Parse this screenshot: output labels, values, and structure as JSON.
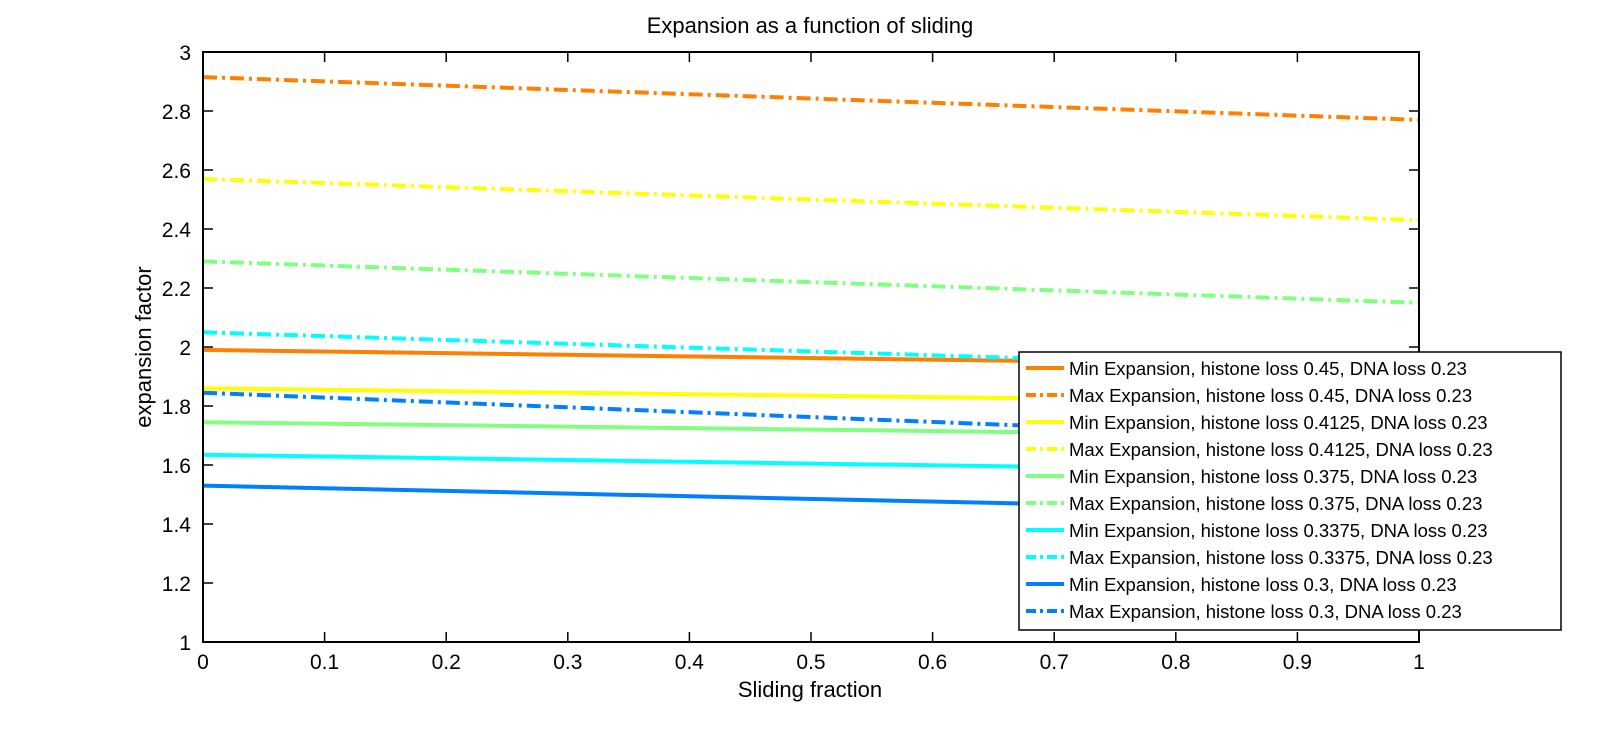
{
  "chart_data": {
    "type": "line",
    "title": "Expansion as a function of sliding",
    "xlabel": "Sliding fraction",
    "ylabel": "expansion factor",
    "xlim": [
      0,
      1
    ],
    "ylim": [
      1,
      3
    ],
    "x_ticks": [
      0,
      0.1,
      0.2,
      0.3,
      0.4,
      0.5,
      0.6,
      0.7,
      0.8,
      0.9,
      1
    ],
    "y_ticks": [
      1,
      1.2,
      1.4,
      1.6,
      1.8,
      2,
      2.2,
      2.4,
      2.6,
      2.8,
      3
    ],
    "grid": false,
    "legend_position": "bottom-right",
    "series": [
      {
        "name": "Min Expansion, histone loss 0.45, DNA loss 0.23",
        "x": [
          0,
          1
        ],
        "y": [
          1.99,
          1.935
        ],
        "color": "#ff8000",
        "style": "solid"
      },
      {
        "name": "Max Expansion, histone loss 0.45, DNA loss 0.23",
        "x": [
          0,
          1
        ],
        "y": [
          2.915,
          2.77
        ],
        "color": "#ff8000",
        "style": "dashdot"
      },
      {
        "name": "Min Expansion, histone loss 0.4125, DNA loss 0.23",
        "x": [
          0,
          1
        ],
        "y": [
          1.86,
          1.81
        ],
        "color": "#ffff00",
        "style": "solid"
      },
      {
        "name": "Max Expansion, histone loss 0.4125, DNA loss 0.23",
        "x": [
          0,
          1
        ],
        "y": [
          2.57,
          2.43
        ],
        "color": "#ffff00",
        "style": "dashdot"
      },
      {
        "name": "Min Expansion, histone loss 0.375, DNA loss 0.23",
        "x": [
          0,
          1
        ],
        "y": [
          1.745,
          1.695
        ],
        "color": "#80ff80",
        "style": "solid"
      },
      {
        "name": "Max Expansion, histone loss 0.375, DNA loss 0.23",
        "x": [
          0,
          1
        ],
        "y": [
          2.29,
          2.15
        ],
        "color": "#80ff80",
        "style": "dashdot"
      },
      {
        "name": "Min Expansion, histone loss 0.3375, DNA loss 0.23",
        "x": [
          0,
          1
        ],
        "y": [
          1.635,
          1.575
        ],
        "color": "#00ffff",
        "style": "solid"
      },
      {
        "name": "Max Expansion, histone loss 0.3375, DNA loss 0.23",
        "x": [
          0,
          1
        ],
        "y": [
          2.05,
          1.92
        ],
        "color": "#00ffff",
        "style": "dashdot"
      },
      {
        "name": "Min Expansion, histone loss 0.3, DNA loss 0.23",
        "x": [
          0,
          1
        ],
        "y": [
          1.53,
          1.44
        ],
        "color": "#0080ff",
        "style": "solid"
      },
      {
        "name": "Max Expansion, histone loss 0.3, DNA loss 0.23",
        "x": [
          0,
          1
        ],
        "y": [
          1.845,
          1.68
        ],
        "color": "#0080ff",
        "style": "dashdot"
      }
    ]
  }
}
